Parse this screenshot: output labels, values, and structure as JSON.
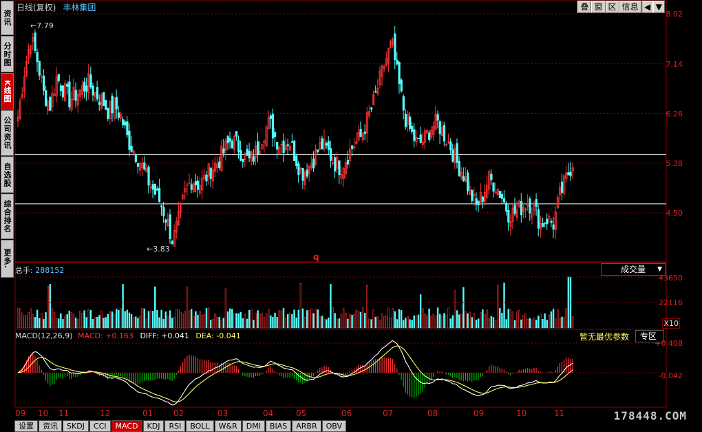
{
  "header": {
    "period": "日线(复权)",
    "stock_name": "丰林集团"
  },
  "toolbar": {
    "overlay": "叠",
    "window": "窗",
    "zone": "区",
    "info": "信息",
    "back": "▶",
    "menu": "▼"
  },
  "side_tabs": [
    "资讯",
    "分时图",
    "K线图",
    "公司资讯",
    "自选股",
    "综合排名",
    "更多."
  ],
  "price_axis": [
    "8.02",
    "7.14",
    "6.26",
    "5.38",
    "4.50"
  ],
  "price_marks": {
    "high": "7.79",
    "low": "3.83",
    "marker": "q"
  },
  "volume": {
    "label": "总手:",
    "value": "288152",
    "selector": "成交量",
    "axis": [
      "43650",
      "22116"
    ],
    "unit": "X10"
  },
  "macd": {
    "label": "MACD(12,26,9)",
    "macd_text": "MACD: +0.163",
    "diff_text": "DIFF: +0.041",
    "dea_text": "DEA: -0.041",
    "no_param": "暂无最优参数",
    "zone": "专区",
    "axis": [
      "+0.408",
      "-0.042"
    ]
  },
  "x_axis": [
    "09",
    "10",
    "11",
    "12",
    "01",
    "02",
    "03",
    "04",
    "05",
    "06",
    "07",
    "08",
    "09",
    "10",
    "11"
  ],
  "bottom_tabs": [
    "设置",
    "资讯",
    "SKDJ",
    "CCI",
    "MACD",
    "KDJ",
    "RSI",
    "BOLL",
    "W&R",
    "DMI",
    "BIAS",
    "ARBR",
    "OBV"
  ],
  "watermark": "178448.COM",
  "colors": {
    "up": "#ff3232",
    "down": "#54ffff",
    "grid": "#8b0000",
    "macd_pos": "#ff3232",
    "macd_neg": "#00c000"
  },
  "chart_data": {
    "type": "candlestick",
    "price_levels": [
      8.02,
      7.14,
      6.26,
      5.38,
      4.5
    ],
    "ylim": [
      3.6,
      8.2
    ],
    "high_label": 7.79,
    "low_label": 3.83,
    "close_path": [
      6.2,
      7.0,
      7.6,
      7.2,
      6.6,
      6.4,
      6.9,
      6.7,
      6.5,
      6.6,
      6.7,
      6.8,
      6.6,
      6.5,
      6.3,
      6.4,
      6.2,
      5.8,
      5.6,
      5.4,
      5.1,
      4.9,
      4.7,
      4.4,
      4.0,
      4.4,
      4.9,
      5.1,
      5.0,
      5.1,
      5.3,
      5.4,
      5.6,
      5.8,
      5.7,
      5.5,
      5.4,
      5.6,
      5.9,
      6.1,
      5.8,
      5.7,
      5.8,
      5.5,
      5.2,
      5.3,
      5.5,
      5.7,
      5.6,
      5.4,
      5.3,
      5.5,
      5.7,
      5.8,
      6.1,
      6.4,
      6.8,
      7.2,
      7.5,
      6.8,
      6.2,
      5.9,
      5.7,
      5.8,
      6.0,
      6.1,
      5.9,
      5.7,
      5.4,
      5.2,
      4.9,
      4.6,
      4.8,
      5.1,
      5.0,
      4.8,
      4.5,
      4.5,
      4.6,
      4.7,
      4.6,
      4.3,
      4.4,
      4.3,
      4.8,
      5.1,
      5.4
    ],
    "support_lines": [
      5.53,
      4.66
    ]
  }
}
